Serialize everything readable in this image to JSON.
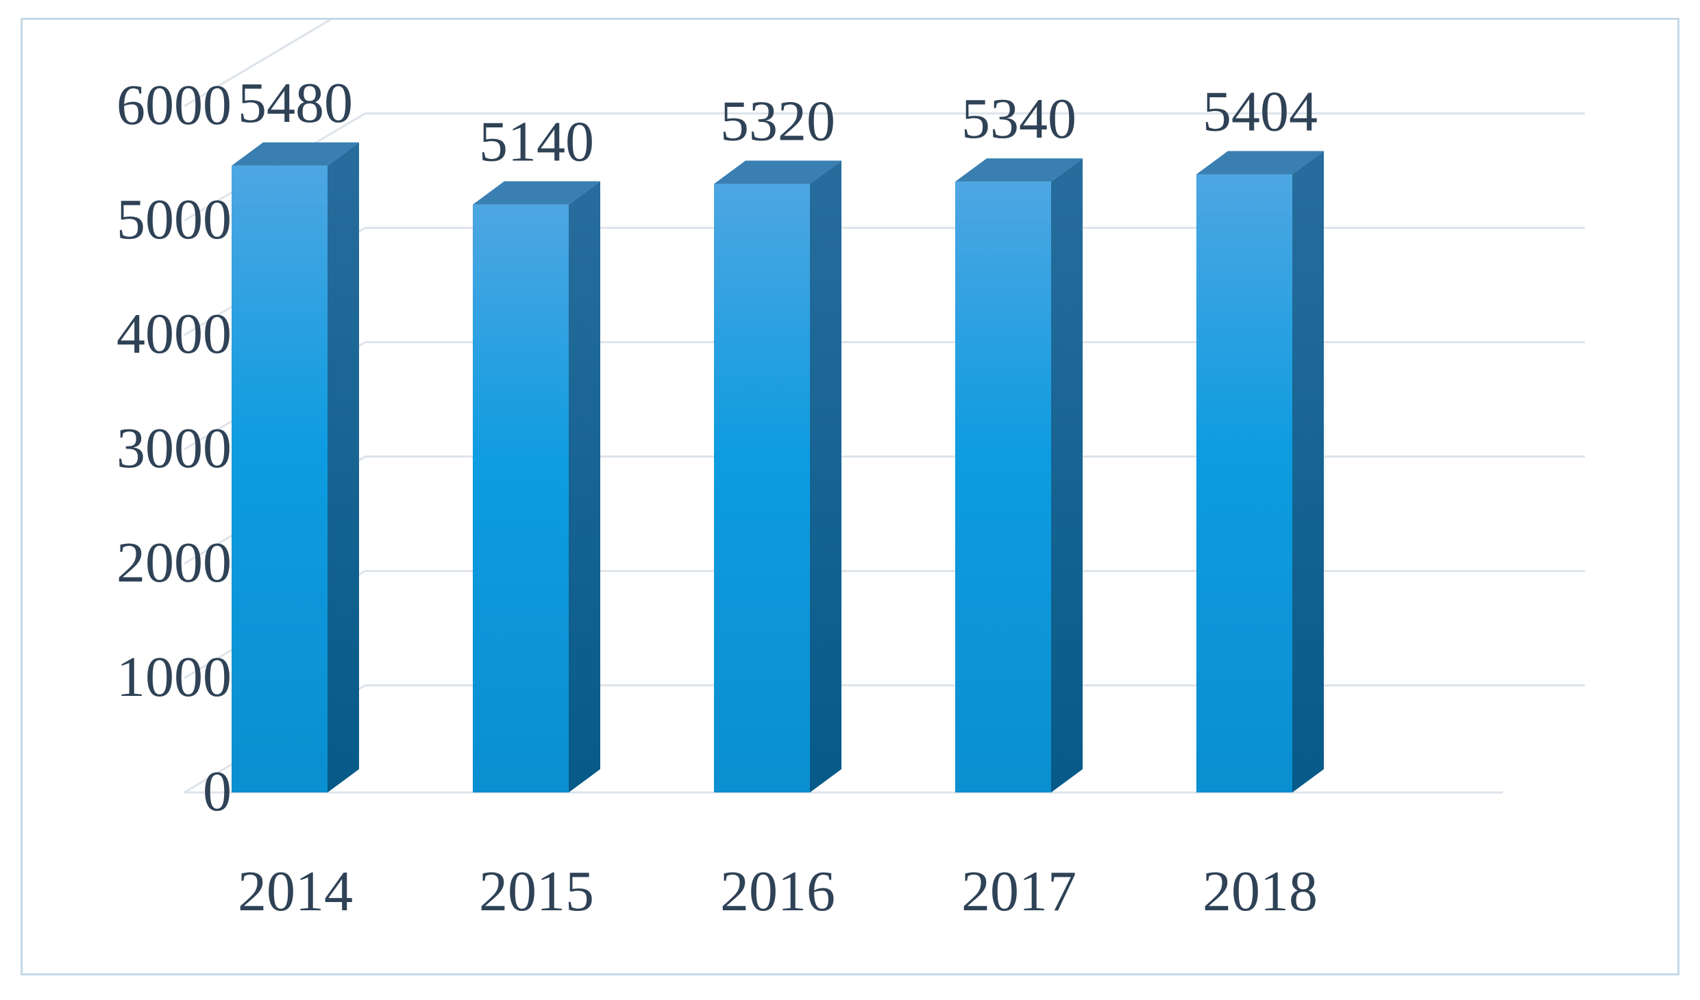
{
  "chart_data": {
    "type": "bar",
    "categories": [
      "2014",
      "2015",
      "2016",
      "2017",
      "2018"
    ],
    "values": [
      5480,
      5140,
      5320,
      5340,
      5404
    ],
    "data_labels": [
      "5480",
      "5140",
      "5320",
      "5340",
      "5404"
    ],
    "yticks": [
      "0",
      "1000",
      "2000",
      "3000",
      "4000",
      "5000",
      "6000"
    ],
    "ylim": [
      0,
      6000
    ],
    "grid": true,
    "legend": "none",
    "style": "3d-column"
  },
  "colors": {
    "bar_front_top": "#4ea6e2",
    "bar_front_mid": "#0d9ce0",
    "bar_front_bottom": "#0a8fd0",
    "bar_side": "#0a5e8e",
    "bar_top": "#3a7fb2",
    "grid": "#dde3ea",
    "text": "#2f4256",
    "frame": "#c5d9e6"
  }
}
